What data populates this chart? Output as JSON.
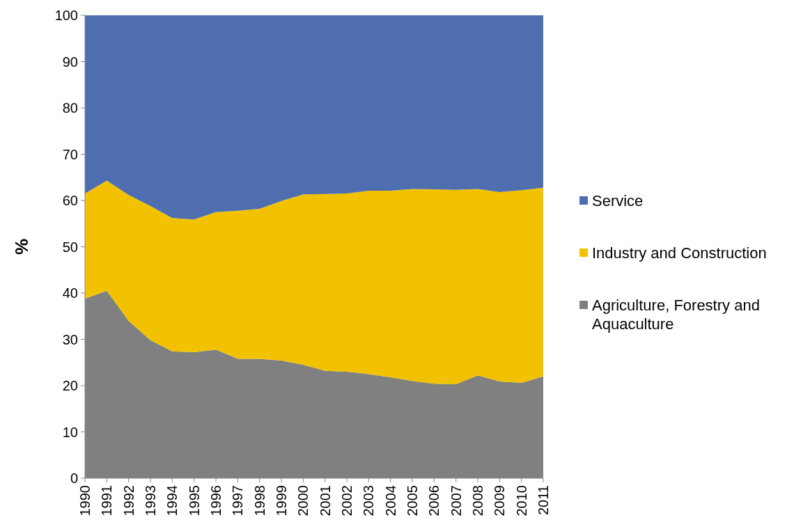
{
  "chart_data": {
    "type": "area",
    "stacked": true,
    "ylabel": "%",
    "categories": [
      "1990",
      "1991",
      "1992",
      "1993",
      "1994",
      "1995",
      "1996",
      "1997",
      "1998",
      "1999",
      "2000",
      "2001",
      "2002",
      "2003",
      "2004",
      "2005",
      "2006",
      "2007",
      "2008",
      "2009",
      "2010",
      "2011"
    ],
    "series": [
      {
        "name": "Agriculture, Forestry and Aquaculture",
        "color": "#808080",
        "values": [
          38.8,
          40.5,
          34.0,
          29.8,
          27.4,
          27.2,
          27.8,
          25.8,
          25.8,
          25.4,
          24.5,
          23.2,
          23.0,
          22.5,
          21.8,
          21.0,
          20.4,
          20.3,
          22.2,
          20.9,
          20.6,
          22.0
        ]
      },
      {
        "name": "Industry and Construction",
        "color": "#f2c200",
        "values": [
          22.7,
          23.8,
          27.2,
          29.0,
          28.8,
          28.7,
          29.7,
          32.0,
          32.4,
          34.5,
          36.8,
          38.2,
          38.5,
          39.6,
          40.3,
          41.5,
          42.0,
          42.0,
          40.3,
          40.9,
          41.6,
          40.8
        ]
      },
      {
        "name": "Service",
        "color": "#4f6eb0",
        "values": [
          38.5,
          35.7,
          38.8,
          41.2,
          43.8,
          44.1,
          42.5,
          42.2,
          41.8,
          40.1,
          38.7,
          38.6,
          38.5,
          37.9,
          37.9,
          37.5,
          37.6,
          37.7,
          37.5,
          38.2,
          37.8,
          37.2
        ]
      }
    ],
    "ylim": [
      0,
      100
    ],
    "yticks": [
      0,
      10,
      20,
      30,
      40,
      50,
      60,
      70,
      80,
      90,
      100
    ],
    "grid": false,
    "legend": "right"
  }
}
